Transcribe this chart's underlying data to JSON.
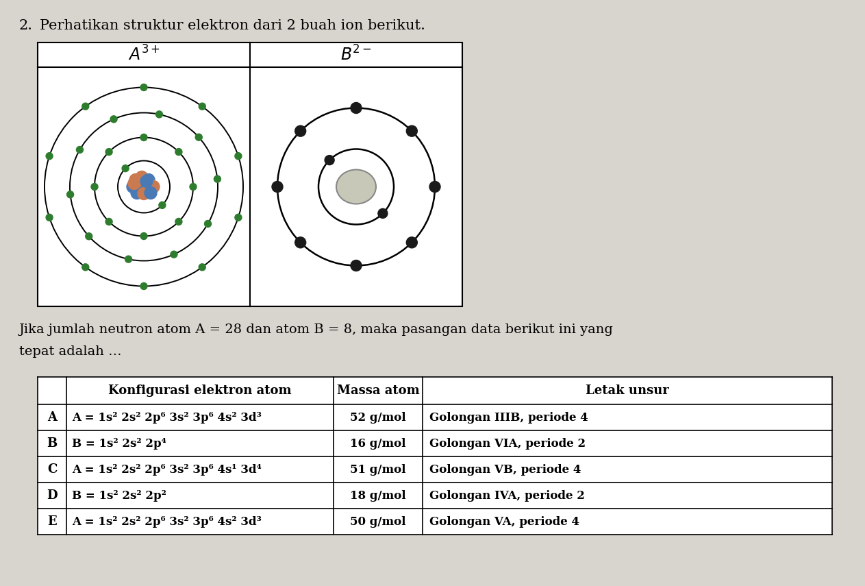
{
  "title_number": "2.",
  "title_text": "Perhatikan struktur elektron dari 2 buah ion berikut.",
  "ion_A_label": "$A^{3+}$",
  "ion_B_label": "$B^{2-}$",
  "body_line1": "Jika jumlah neutron atom A = 28 dan atom B = 8, maka pasangan data berikut ini yang",
  "body_line2": "tepat adalah …",
  "table_headers": [
    "",
    "Konfigurasi elektron atom",
    "Massa atom",
    "Letak unsur"
  ],
  "table_rows": [
    [
      "A",
      "A = 1s² 2s² 2p⁶ 3s² 3p⁶ 4s² 3d³",
      "52 g/mol",
      "Golongan IIIB, periode 4"
    ],
    [
      "B",
      "B = 1s² 2s² 2p⁴",
      "16 g/mol",
      "Golongan VIA, periode 2"
    ],
    [
      "C",
      "A = 1s² 2s² 2p⁶ 3s² 3p⁶ 4s¹ 3d⁴",
      "51 g/mol",
      "Golongan VB, periode 4"
    ],
    [
      "D",
      "B = 1s² 2s² 2p²",
      "18 g/mol",
      "Golongan IVA, periode 2"
    ],
    [
      "E",
      "A = 1s² 2s² 2p⁶ 3s² 3p⁶ 4s² 3d³",
      "50 g/mol",
      "Golongan VA, periode 4"
    ]
  ],
  "bg_color": "#d8d4ce",
  "nucleus_A_colors": [
    "#c97a50",
    "#4a7ab5",
    "#c97a50",
    "#4a7ab5",
    "#c97a50",
    "#4a7ab5",
    "#c97a50",
    "#4a7ab5",
    "#c97a50",
    "#4a7ab5",
    "#c97a50",
    "#4a7ab5",
    "#c97a50",
    "#4a7ab5",
    "#c97a50",
    "#4a7ab5"
  ],
  "electron_color_A": "#2e7d2e",
  "electron_color_B": "#1a1a1a",
  "nucleus_B_color": "#c8c8b8"
}
